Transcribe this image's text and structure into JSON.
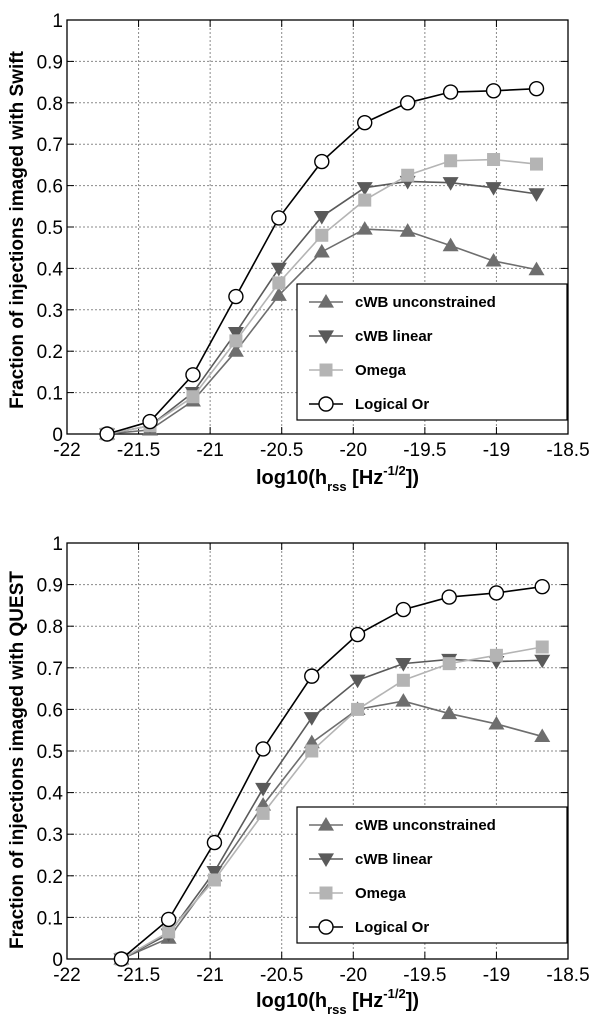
{
  "colors": {
    "cwb_unconstrained": "#6e6e6e",
    "cwb_linear": "#5a5a5a",
    "omega": "#b4b4b4",
    "logical_or": "#000000"
  },
  "chart_data": [
    {
      "type": "line",
      "ylabel": "Fraction of injections imaged with Swift",
      "xlabel_main": "log10(h",
      "xlabel_sub": "rss",
      "xlabel_unit": " [Hz",
      "xlabel_sup": "-1/2",
      "xlabel_end": "])",
      "xlim": [
        -22,
        -18.5
      ],
      "ylim": [
        0,
        1
      ],
      "xticks": [
        -22,
        -21.5,
        -21,
        -20.5,
        -20,
        -19.5,
        -19,
        -18.5
      ],
      "xtick_labels": [
        "-22",
        "-21.5",
        "-21",
        "-20.5",
        "-20",
        "-19.5",
        "-19",
        "-18.5"
      ],
      "yticks": [
        0,
        0.1,
        0.2,
        0.3,
        0.4,
        0.5,
        0.6,
        0.7,
        0.8,
        0.9,
        1
      ],
      "ytick_labels": [
        "0",
        "0.1",
        "0.2",
        "0.3",
        "0.4",
        "0.5",
        "0.6",
        "0.7",
        "0.8",
        "0.9",
        "1"
      ],
      "grid": true,
      "legend_position": "bottom-right",
      "x": [
        -21.72,
        -21.42,
        -21.12,
        -20.82,
        -20.52,
        -20.22,
        -19.92,
        -19.62,
        -19.32,
        -19.02,
        -18.72
      ],
      "series": [
        {
          "name": "cWB unconstrained",
          "marker": "triangle-up",
          "color_key": "cwb_unconstrained",
          "values": [
            0.0,
            0.01,
            0.08,
            0.2,
            0.335,
            0.44,
            0.495,
            0.49,
            0.455,
            0.418,
            0.397
          ]
        },
        {
          "name": "cWB linear",
          "marker": "triangle-down",
          "color_key": "cwb_linear",
          "values": [
            0.0,
            0.02,
            0.1,
            0.245,
            0.4,
            0.525,
            0.595,
            0.61,
            0.607,
            0.595,
            0.58
          ]
        },
        {
          "name": "Omega",
          "marker": "square",
          "color_key": "omega",
          "values": [
            0.0,
            0.02,
            0.09,
            0.225,
            0.365,
            0.48,
            0.565,
            0.625,
            0.66,
            0.663,
            0.652
          ]
        },
        {
          "name": "Logical Or",
          "marker": "circle-open",
          "color_key": "logical_or",
          "values": [
            0.0,
            0.03,
            0.143,
            0.332,
            0.522,
            0.658,
            0.752,
            0.8,
            0.826,
            0.829,
            0.834
          ]
        }
      ]
    },
    {
      "type": "line",
      "ylabel": "Fraction of injections imaged with QUEST",
      "xlabel_main": "log10(h",
      "xlabel_sub": "rss",
      "xlabel_unit": " [Hz",
      "xlabel_sup": "-1/2",
      "xlabel_end": "])",
      "xlim": [
        -22,
        -18.5
      ],
      "ylim": [
        0,
        1
      ],
      "xticks": [
        -22,
        -21.5,
        -21,
        -20.5,
        -20,
        -19.5,
        -19,
        -18.5
      ],
      "xtick_labels": [
        "-22",
        "-21.5",
        "-21",
        "-20.5",
        "-20",
        "-19.5",
        "-19",
        "-18.5"
      ],
      "yticks": [
        0,
        0.1,
        0.2,
        0.3,
        0.4,
        0.5,
        0.6,
        0.7,
        0.8,
        0.9,
        1
      ],
      "ytick_labels": [
        "0",
        "0.1",
        "0.2",
        "0.3",
        "0.4",
        "0.5",
        "0.6",
        "0.7",
        "0.8",
        "0.9",
        "1"
      ],
      "grid": true,
      "legend_position": "bottom-right",
      "x": [
        -21.62,
        -21.29,
        -20.97,
        -20.63,
        -20.29,
        -19.97,
        -19.65,
        -19.33,
        -19.0,
        -18.68
      ],
      "series": [
        {
          "name": "cWB unconstrained",
          "marker": "triangle-up",
          "color_key": "cwb_unconstrained",
          "values": [
            0.0,
            0.05,
            0.2,
            0.37,
            0.52,
            0.6,
            0.62,
            0.59,
            0.565,
            0.535
          ]
        },
        {
          "name": "cWB linear",
          "marker": "triangle-down",
          "color_key": "cwb_linear",
          "values": [
            0.0,
            0.06,
            0.21,
            0.41,
            0.58,
            0.67,
            0.71,
            0.72,
            0.715,
            0.718
          ]
        },
        {
          "name": "Omega",
          "marker": "square",
          "color_key": "omega",
          "values": [
            0.0,
            0.065,
            0.19,
            0.35,
            0.5,
            0.6,
            0.67,
            0.71,
            0.73,
            0.75
          ]
        },
        {
          "name": "Logical Or",
          "marker": "circle-open",
          "color_key": "logical_or",
          "values": [
            0.0,
            0.095,
            0.28,
            0.505,
            0.68,
            0.78,
            0.84,
            0.87,
            0.88,
            0.895
          ]
        }
      ]
    }
  ]
}
